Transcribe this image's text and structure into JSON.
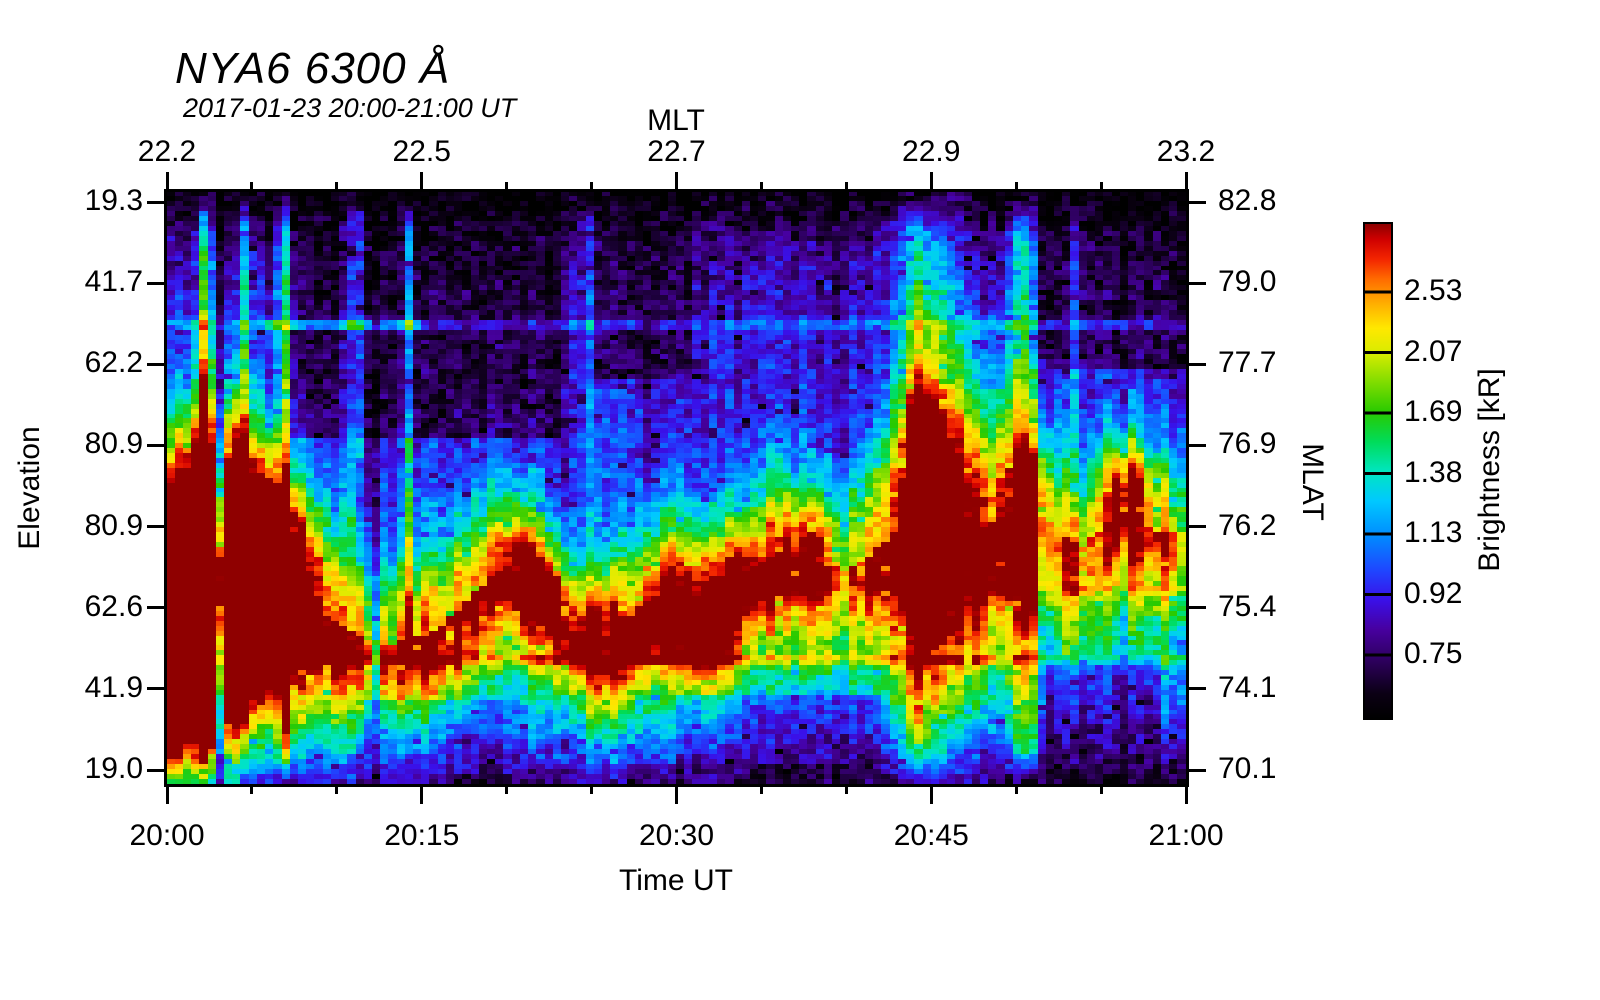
{
  "title": "NYA6 6300 Å",
  "subtitle": "2017-01-23 20:00-21:00 UT",
  "axes": {
    "top": {
      "label": "MLT",
      "ticks": [
        "22.2",
        "22.5",
        "22.7",
        "22.9",
        "23.2"
      ]
    },
    "bottom": {
      "label": "Time UT",
      "ticks": [
        "20:00",
        "20:15",
        "20:30",
        "20:45",
        "21:00"
      ]
    },
    "left": {
      "label": "Elevation",
      "ticks": [
        "19.3",
        "41.7",
        "62.2",
        "80.9",
        "80.9",
        "62.6",
        "41.9",
        "19.0"
      ]
    },
    "right": {
      "label": "MLAT",
      "ticks": [
        "82.8",
        "79.0",
        "77.7",
        "76.9",
        "76.2",
        "75.4",
        "74.1",
        "70.1"
      ]
    }
  },
  "colorbar": {
    "label": "Brightness [kR]",
    "ticks": [
      "2.53",
      "2.07",
      "1.69",
      "1.38",
      "1.13",
      "0.92",
      "0.75"
    ],
    "levels_kR": [
      2.53,
      2.07,
      1.69,
      1.38,
      1.13,
      0.92,
      0.75
    ]
  },
  "chart_data": {
    "type": "heatmap",
    "title": "NYA6 6300 Å",
    "subtitle": "2017-01-23 20:00-21:00 UT",
    "x_axis": {
      "label": "Time UT",
      "start": "20:00",
      "end": "21:00",
      "major_ticks": [
        "20:00",
        "20:15",
        "20:30",
        "20:45",
        "21:00"
      ],
      "minor_tick_minutes": 5
    },
    "x2_axis": {
      "label": "MLT",
      "ticks_at_major": [
        "22.2",
        "22.5",
        "22.7",
        "22.9",
        "23.2"
      ]
    },
    "y_axis": {
      "label": "Elevation",
      "ticks": [
        19.3,
        41.7,
        62.2,
        80.9,
        80.9,
        62.6,
        41.9,
        19.0
      ]
    },
    "y2_axis": {
      "label": "MLAT",
      "ticks": [
        82.8,
        79.0,
        77.7,
        76.9,
        76.2,
        75.4,
        74.1,
        70.1
      ]
    },
    "value_axis": {
      "label": "Brightness [kR]",
      "levels": [
        0.75,
        0.92,
        1.13,
        1.38,
        1.69,
        2.07,
        2.53
      ]
    },
    "colormap_stops": [
      [
        0.0,
        "#000000"
      ],
      [
        0.05,
        "#0b0014"
      ],
      [
        0.12,
        "#2e0060"
      ],
      [
        0.18,
        "#47009f"
      ],
      [
        0.24,
        "#3a10e8"
      ],
      [
        0.3,
        "#1f46ff"
      ],
      [
        0.37,
        "#008cff"
      ],
      [
        0.44,
        "#00c8ff"
      ],
      [
        0.5,
        "#00e6c0"
      ],
      [
        0.56,
        "#00dc5a"
      ],
      [
        0.62,
        "#28ca00"
      ],
      [
        0.68,
        "#7fdc00"
      ],
      [
        0.74,
        "#d8ec00"
      ],
      [
        0.79,
        "#ffe800"
      ],
      [
        0.84,
        "#ffae00"
      ],
      [
        0.89,
        "#ff6a00"
      ],
      [
        0.93,
        "#f32500"
      ],
      [
        0.97,
        "#cf0000"
      ],
      [
        1.0,
        "#8f0000"
      ]
    ],
    "grid": {
      "cols": 124,
      "rows": 120,
      "minutes": 60
    },
    "background_profile": [
      [
        0,
        0.02
      ],
      [
        0.04,
        0.07
      ],
      [
        0.1,
        0.17
      ],
      [
        0.22,
        0.21
      ],
      [
        0.35,
        0.23
      ],
      [
        0.5,
        0.26
      ],
      [
        0.65,
        0.29
      ],
      [
        0.8,
        0.3
      ],
      [
        0.9,
        0.24
      ],
      [
        0.96,
        0.13
      ],
      [
        1,
        0.05
      ]
    ],
    "dark_regions": [
      [
        7.5,
        23,
        0,
        0.42,
        0.45
      ],
      [
        25,
        31,
        0,
        0.32,
        0.5
      ],
      [
        51,
        60,
        0,
        0.3,
        0.5
      ],
      [
        11,
        20,
        0.86,
        1,
        0.55
      ],
      [
        30,
        42,
        0.85,
        1,
        0.55
      ],
      [
        52,
        58.5,
        0.78,
        1,
        0.45
      ]
    ],
    "band_path": [
      [
        0,
        0.72,
        0.85,
        0.18
      ],
      [
        2,
        0.62,
        1.0,
        0.2
      ],
      [
        4,
        0.62,
        0.95,
        0.19
      ],
      [
        6,
        0.64,
        0.8,
        0.16
      ],
      [
        8,
        0.68,
        0.68,
        0.13
      ],
      [
        10,
        0.73,
        0.55,
        0.11
      ],
      [
        13,
        0.77,
        0.48,
        0.1
      ],
      [
        16,
        0.74,
        0.5,
        0.1
      ],
      [
        18,
        0.68,
        0.52,
        0.1
      ],
      [
        20,
        0.63,
        0.54,
        0.1
      ],
      [
        22,
        0.67,
        0.52,
        0.1
      ],
      [
        24,
        0.74,
        0.5,
        0.09
      ],
      [
        26,
        0.75,
        0.52,
        0.09
      ],
      [
        28,
        0.7,
        0.5,
        0.1
      ],
      [
        30,
        0.67,
        0.54,
        0.1
      ],
      [
        32,
        0.7,
        0.54,
        0.11
      ],
      [
        34,
        0.65,
        0.5,
        0.1
      ],
      [
        36,
        0.61,
        0.52,
        0.1
      ],
      [
        38,
        0.62,
        0.52,
        0.1
      ],
      [
        40,
        0.64,
        0.45,
        0.1
      ],
      [
        42,
        0.6,
        0.5,
        0.12
      ],
      [
        44,
        0.54,
        0.68,
        0.22
      ],
      [
        46,
        0.53,
        0.78,
        0.26
      ],
      [
        48,
        0.57,
        0.62,
        0.18
      ],
      [
        50,
        0.53,
        0.6,
        0.13
      ],
      [
        52,
        0.56,
        0.45,
        0.11
      ],
      [
        54,
        0.6,
        0.42,
        0.1
      ],
      [
        56,
        0.54,
        0.5,
        0.1
      ],
      [
        58,
        0.57,
        0.45,
        0.1
      ],
      [
        60,
        0.58,
        0.42,
        0.1
      ]
    ],
    "band_skirt": {
      "amp_factor": 0.42,
      "sigma": 0.24
    },
    "blobs": [
      [
        1.8,
        0.6,
        2.2,
        0.11,
        0.5
      ],
      [
        4.3,
        0.6,
        1.8,
        0.1,
        0.45
      ],
      [
        3.0,
        0.73,
        2.4,
        0.11,
        0.42
      ],
      [
        6.3,
        0.64,
        1.4,
        0.09,
        0.35
      ],
      [
        1.5,
        0.86,
        2.0,
        0.1,
        0.4
      ],
      [
        20.6,
        0.62,
        0.9,
        0.05,
        0.32
      ],
      [
        22.4,
        0.68,
        0.8,
        0.05,
        0.33
      ],
      [
        24.6,
        0.74,
        0.9,
        0.045,
        0.28
      ],
      [
        27.2,
        0.76,
        0.9,
        0.05,
        0.33
      ],
      [
        29.3,
        0.7,
        0.7,
        0.05,
        0.25
      ],
      [
        31.7,
        0.72,
        1.3,
        0.07,
        0.36
      ],
      [
        34.2,
        0.64,
        0.9,
        0.05,
        0.27
      ],
      [
        37.6,
        0.6,
        1.1,
        0.05,
        0.26
      ],
      [
        45.4,
        0.56,
        1.5,
        0.09,
        0.5
      ],
      [
        44.7,
        0.4,
        0.9,
        0.05,
        0.3
      ],
      [
        50.8,
        0.5,
        0.6,
        0.04,
        0.42
      ],
      [
        56.6,
        0.51,
        1.0,
        0.05,
        0.4
      ]
    ],
    "vstripes": [
      [
        2.3,
        0.25,
        0.42,
        0,
        1
      ],
      [
        4.7,
        0.22,
        0.28,
        0,
        0.9
      ],
      [
        6.9,
        0.3,
        0.38,
        0,
        1
      ],
      [
        10.7,
        0.2,
        0.26,
        0,
        0.62
      ],
      [
        11.3,
        0.18,
        0.22,
        0,
        0.5
      ],
      [
        14.2,
        0.2,
        0.28,
        0,
        0.8
      ],
      [
        24.8,
        0.2,
        0.12,
        0,
        0.6
      ],
      [
        43.8,
        0.9,
        0.18,
        0,
        1
      ],
      [
        50.2,
        0.45,
        0.3,
        0,
        1
      ],
      [
        50.9,
        0.3,
        0.25,
        0,
        1
      ],
      [
        53.6,
        0.18,
        0.2,
        0,
        0.45
      ],
      [
        57.0,
        0.2,
        0.12,
        0.3,
        0.8
      ]
    ],
    "dark_cols": [
      [
        3.2,
        0.25,
        0.35
      ],
      [
        12.3,
        0.25,
        0.5
      ]
    ],
    "hlines": [
      [
        0.225,
        0.16,
        0,
        60
      ],
      [
        0.225,
        0.22,
        6,
        15
      ],
      [
        0.79,
        0.2,
        0,
        60
      ],
      [
        0.67,
        0.1,
        35,
        60
      ]
    ]
  }
}
